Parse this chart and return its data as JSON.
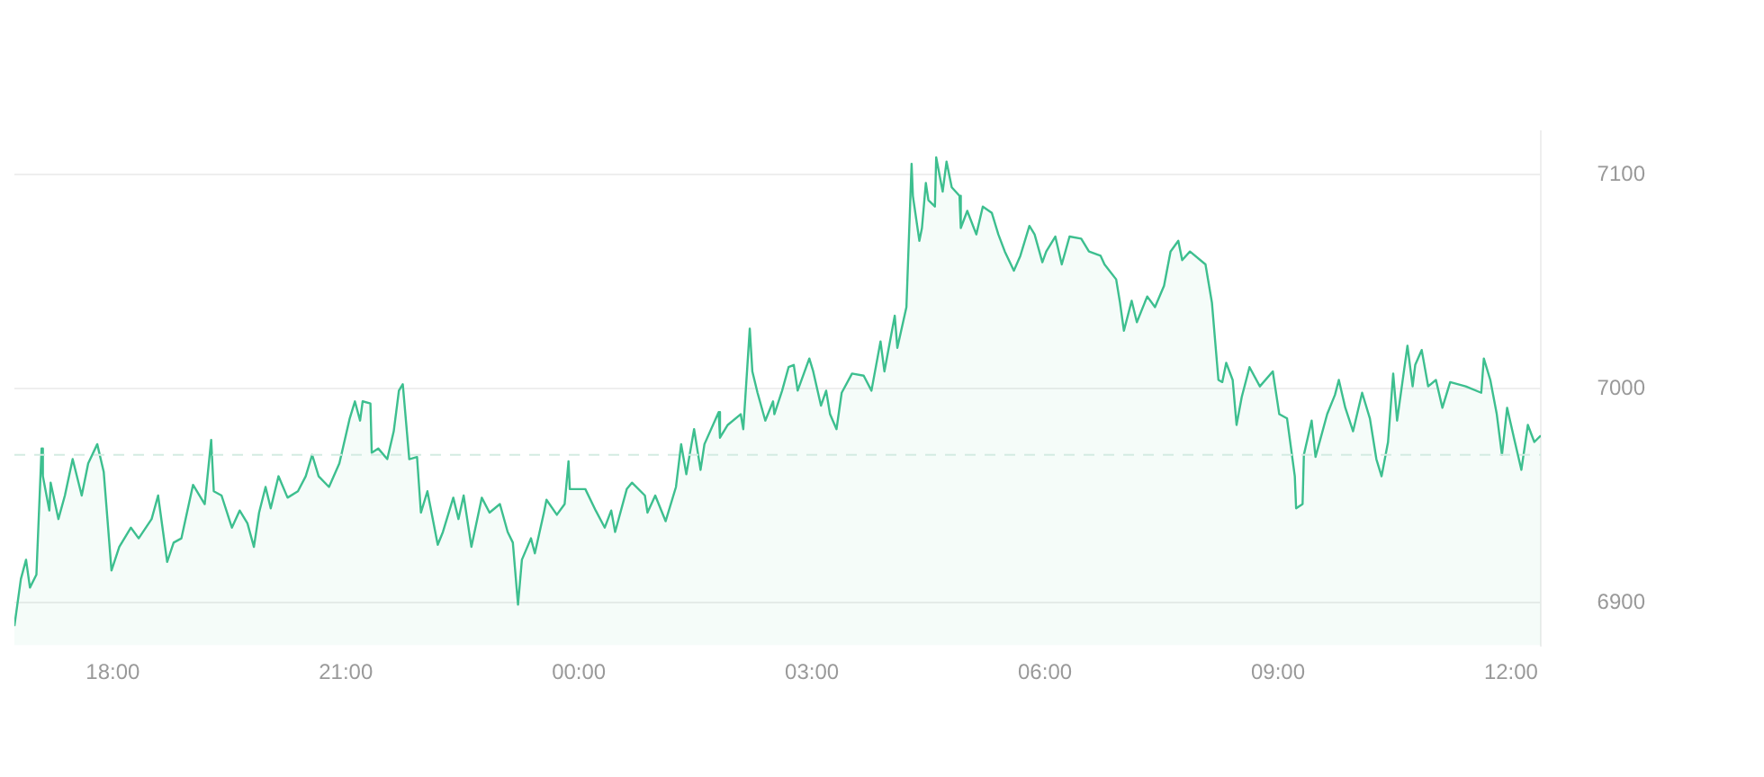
{
  "chart_data": {
    "type": "area",
    "xlim": [
      "2000-01-01T16:44",
      "2000-01-02T12:23"
    ],
    "xticks": [
      {
        "value": "2000-01-01T18:00",
        "label": "18:00"
      },
      {
        "value": "2000-01-01T21:00",
        "label": "21:00"
      },
      {
        "value": "2000-01-02T00:00",
        "label": "00:00"
      },
      {
        "value": "2000-01-02T03:00",
        "label": "03:00"
      },
      {
        "value": "2000-01-02T06:00",
        "label": "06:00"
      },
      {
        "value": "2000-01-02T09:00",
        "label": "09:00"
      },
      {
        "value": "2000-01-02T12:00",
        "label": "12:00"
      }
    ],
    "ylim": [
      6880,
      7120
    ],
    "yticks": [
      6900,
      7000,
      7100
    ],
    "grid": "y",
    "legend": false,
    "ref_lines": [
      {
        "axis": "y",
        "value": 6969,
        "color": "#d3ebe2",
        "line_style": "dashed"
      }
    ],
    "series": [
      {
        "color": "#3dbf8f",
        "x": [
          "2000-01-01T16:44",
          "2000-01-01T16:49",
          "2000-01-01T16:53",
          "2000-01-01T16:56",
          "2000-01-01T17:01",
          "2000-01-01T17:05",
          "2000-01-01T17:06",
          "2000-01-01T17:11",
          "2000-01-01T17:12",
          "2000-01-01T17:18",
          "2000-01-01T17:23",
          "2000-01-01T17:29",
          "2000-01-01T17:36",
          "2000-01-01T17:41",
          "2000-01-01T17:48",
          "2000-01-01T17:53",
          "2000-01-01T17:59",
          "2000-01-01T18:05",
          "2000-01-01T18:14",
          "2000-01-01T18:20",
          "2000-01-01T18:30",
          "2000-01-01T18:35",
          "2000-01-01T18:42",
          "2000-01-01T18:47",
          "2000-01-01T18:53",
          "2000-01-01T19:02",
          "2000-01-01T19:11",
          "2000-01-01T19:16",
          "2000-01-01T19:18",
          "2000-01-01T19:24",
          "2000-01-01T19:32",
          "2000-01-01T19:38",
          "2000-01-01T19:44",
          "2000-01-01T19:49",
          "2000-01-01T19:53",
          "2000-01-01T19:58",
          "2000-01-01T20:02",
          "2000-01-01T20:08",
          "2000-01-01T20:15",
          "2000-01-01T20:23",
          "2000-01-01T20:29",
          "2000-01-01T20:34",
          "2000-01-01T20:39",
          "2000-01-01T20:47",
          "2000-01-01T20:55",
          "2000-01-01T21:03",
          "2000-01-01T21:07",
          "2000-01-01T21:11",
          "2000-01-01T21:13",
          "2000-01-01T21:19",
          "2000-01-01T21:20",
          "2000-01-01T21:25",
          "2000-01-01T21:32",
          "2000-01-01T21:37",
          "2000-01-01T21:41",
          "2000-01-01T21:44",
          "2000-01-01T21:49",
          "2000-01-01T21:55",
          "2000-01-01T21:58",
          "2000-01-01T22:03",
          "2000-01-01T22:11",
          "2000-01-01T22:15",
          "2000-01-01T22:23",
          "2000-01-01T22:27",
          "2000-01-01T22:31",
          "2000-01-01T22:37",
          "2000-01-01T22:45",
          "2000-01-01T22:51",
          "2000-01-01T22:59",
          "2000-01-01T23:05",
          "2000-01-01T23:09",
          "2000-01-01T23:13",
          "2000-01-01T23:16",
          "2000-01-01T23:23",
          "2000-01-01T23:26",
          "2000-01-01T23:33",
          "2000-01-01T23:35",
          "2000-01-01T23:43",
          "2000-01-01T23:49",
          "2000-01-01T23:52",
          "2000-01-01T23:53",
          "2000-01-02T00:05",
          "2000-01-02T00:13",
          "2000-01-02T00:20",
          "2000-01-02T00:25",
          "2000-01-02T00:28",
          "2000-01-02T00:37",
          "2000-01-02T00:41",
          "2000-01-02T00:51",
          "2000-01-02T00:53",
          "2000-01-02T00:59",
          "2000-01-02T01:07",
          "2000-01-02T01:15",
          "2000-01-02T01:19",
          "2000-01-02T01:23",
          "2000-01-02T01:29",
          "2000-01-02T01:34",
          "2000-01-02T01:37",
          "2000-01-02T01:48",
          "2000-01-02T01:49",
          "2000-01-02T01:55",
          "2000-01-02T02:05",
          "2000-01-02T02:07",
          "2000-01-02T02:12",
          "2000-01-02T02:14",
          "2000-01-02T02:18",
          "2000-01-02T02:24",
          "2000-01-02T02:30",
          "2000-01-02T02:31",
          "2000-01-02T02:37",
          "2000-01-02T02:42",
          "2000-01-02T02:46",
          "2000-01-02T02:49",
          "2000-01-02T02:58",
          "2000-01-02T03:01",
          "2000-01-02T03:07",
          "2000-01-02T03:11",
          "2000-01-02T03:14",
          "2000-01-02T03:19",
          "2000-01-02T03:23",
          "2000-01-02T03:31",
          "2000-01-02T03:40",
          "2000-01-02T03:46",
          "2000-01-02T03:53",
          "2000-01-02T03:56",
          "2000-01-02T04:04",
          "2000-01-02T04:06",
          "2000-01-02T04:13",
          "2000-01-02T04:17",
          "2000-01-02T04:18",
          "2000-01-02T04:23",
          "2000-01-02T04:25",
          "2000-01-02T04:28",
          "2000-01-02T04:30",
          "2000-01-02T04:35",
          "2000-01-02T04:36",
          "2000-01-02T04:41",
          "2000-01-02T04:44",
          "2000-01-02T04:48",
          "2000-01-02T04:54",
          "2000-01-02T04:55",
          "2000-01-02T05:00",
          "2000-01-02T05:07",
          "2000-01-02T05:12",
          "2000-01-02T05:19",
          "2000-01-02T05:24",
          "2000-01-02T05:29",
          "2000-01-02T05:36",
          "2000-01-02T05:41",
          "2000-01-02T05:48",
          "2000-01-02T05:52",
          "2000-01-02T05:58",
          "2000-01-02T06:01",
          "2000-01-02T06:08",
          "2000-01-02T06:13",
          "2000-01-02T06:19",
          "2000-01-02T06:28",
          "2000-01-02T06:34",
          "2000-01-02T06:43",
          "2000-01-02T06:46",
          "2000-01-02T06:55",
          "2000-01-02T06:58",
          "2000-01-02T07:01",
          "2000-01-02T07:07",
          "2000-01-02T07:11",
          "2000-01-02T07:19",
          "2000-01-02T07:25",
          "2000-01-02T07:32",
          "2000-01-02T07:37",
          "2000-01-02T07:43",
          "2000-01-02T07:46",
          "2000-01-02T07:52",
          "2000-01-02T08:04",
          "2000-01-02T08:09",
          "2000-01-02T08:14",
          "2000-01-02T08:17",
          "2000-01-02T08:20",
          "2000-01-02T08:25",
          "2000-01-02T08:28",
          "2000-01-02T08:32",
          "2000-01-02T08:38",
          "2000-01-02T08:46",
          "2000-01-02T08:56",
          "2000-01-02T09:01",
          "2000-01-02T09:07",
          "2000-01-02T09:13",
          "2000-01-02T09:14",
          "2000-01-02T09:19",
          "2000-01-02T09:20",
          "2000-01-02T09:26",
          "2000-01-02T09:29",
          "2000-01-02T09:38",
          "2000-01-02T09:44",
          "2000-01-02T09:47",
          "2000-01-02T09:52",
          "2000-01-02T09:58",
          "2000-01-02T10:05",
          "2000-01-02T10:11",
          "2000-01-02T10:16",
          "2000-01-02T10:20",
          "2000-01-02T10:25",
          "2000-01-02T10:29",
          "2000-01-02T10:32",
          "2000-01-02T10:40",
          "2000-01-02T10:44",
          "2000-01-02T10:46",
          "2000-01-02T10:51",
          "2000-01-02T10:56",
          "2000-01-02T11:02",
          "2000-01-02T11:07",
          "2000-01-02T11:13",
          "2000-01-02T11:25",
          "2000-01-02T11:37",
          "2000-01-02T11:39",
          "2000-01-02T11:44",
          "2000-01-02T11:49",
          "2000-01-02T11:53",
          "2000-01-02T11:57",
          "2000-01-02T12:03",
          "2000-01-02T12:08",
          "2000-01-02T12:13",
          "2000-01-02T12:18",
          "2000-01-02T12:23"
        ],
        "values": [
          6889,
          6911,
          6920,
          6907,
          6913,
          6972,
          6959,
          6943,
          6956,
          6939,
          6950,
          6967,
          6950,
          6965,
          6974,
          6961,
          6915,
          6926,
          6935,
          6930,
          6939,
          6950,
          6919,
          6928,
          6930,
          6955,
          6946,
          6976,
          6952,
          6950,
          6935,
          6943,
          6937,
          6926,
          6942,
          6954,
          6944,
          6959,
          6949,
          6952,
          6959,
          6969,
          6959,
          6954,
          6965,
          6986,
          6994,
          6985,
          6994,
          6993,
          6970,
          6972,
          6967,
          6980,
          6999,
          7002,
          6967,
          6968,
          6942,
          6952,
          6927,
          6933,
          6949,
          6939,
          6950,
          6926,
          6949,
          6942,
          6946,
          6933,
          6928,
          6899,
          6920,
          6930,
          6923,
          6942,
          6948,
          6941,
          6946,
          6966,
          6953,
          6953,
          6943,
          6935,
          6943,
          6933,
          6953,
          6956,
          6950,
          6942,
          6950,
          6938,
          6954,
          6974,
          6960,
          6981,
          6962,
          6974,
          6989,
          6977,
          6983,
          6988,
          6981,
          7028,
          7008,
          6998,
          6985,
          6994,
          6988,
          6999,
          7010,
          7011,
          6999,
          7014,
          7008,
          6992,
          6999,
          6988,
          6981,
          6998,
          7007,
          7006,
          6999,
          7022,
          7008,
          7034,
          7019,
          7038,
          7105,
          7090,
          7069,
          7075,
          7096,
          7088,
          7085,
          7108,
          7092,
          7106,
          7094,
          7090,
          7075,
          7083,
          7072,
          7085,
          7082,
          7072,
          7064,
          7055,
          7062,
          7076,
          7072,
          7059,
          7064,
          7071,
          7058,
          7071,
          7070,
          7064,
          7062,
          7058,
          7051,
          7040,
          7027,
          7041,
          7031,
          7043,
          7038,
          7048,
          7064,
          7069,
          7060,
          7064,
          7058,
          7040,
          7004,
          7003,
          7012,
          7004,
          6983,
          6996,
          7010,
          7001,
          7008,
          6988,
          6986,
          6959,
          6944,
          6946,
          6969,
          6985,
          6968,
          6988,
          6997,
          7004,
          6991,
          6980,
          6998,
          6986,
          6967,
          6959,
          6975,
          7007,
          6985,
          7020,
          7001,
          7011,
          7018,
          7001,
          7004,
          6991,
          7003,
          7001,
          6998,
          7014,
          7004,
          6988,
          6969,
          6991,
          6975,
          6962,
          6983,
          6975,
          6978
        ]
      }
    ]
  }
}
